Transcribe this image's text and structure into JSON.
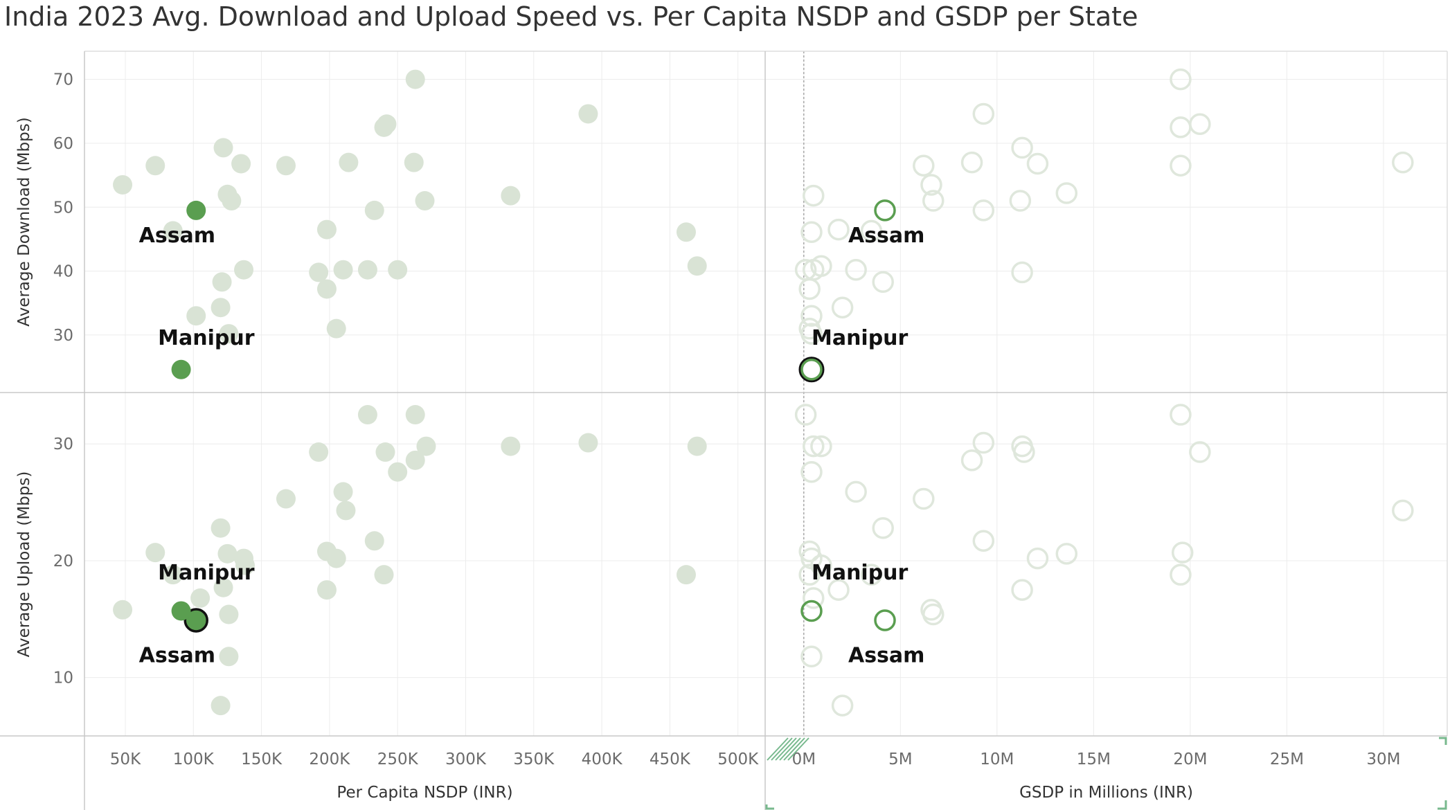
{
  "title": "India 2023 Avg. Download and Upload Speed vs. Per Capita NSDP and GSDP per State",
  "colors": {
    "muted": "#d9e3d5",
    "muted_ring": "#dfe7dc",
    "highlight": "#5a9e50",
    "selected_stroke": "#111111",
    "grid": "#ececec",
    "divider": "#c8c8c8"
  },
  "chart_data": {
    "type": "scatter",
    "layout": "2x2 faceted scatter",
    "x_axes": [
      {
        "label": "Per Capita NSDP (INR)",
        "ticks": [
          "50K",
          "100K",
          "150K",
          "200K",
          "250K",
          "300K",
          "350K",
          "400K",
          "450K",
          "500K"
        ],
        "tick_values": [
          50,
          100,
          150,
          200,
          250,
          300,
          350,
          400,
          450,
          500
        ],
        "range": [
          20,
          520
        ]
      },
      {
        "label": "GSDP in Millions (INR)",
        "ticks": [
          "0M",
          "5M",
          "10M",
          "15M",
          "20M",
          "25M",
          "30M"
        ],
        "tick_values": [
          0,
          5,
          10,
          15,
          20,
          25,
          30
        ],
        "range": [
          -2,
          33.3
        ]
      }
    ],
    "y_axes": [
      {
        "label": "Average Download (Mbps)",
        "ticks": [
          "30",
          "40",
          "50",
          "60",
          "70"
        ],
        "tick_values": [
          30,
          40,
          50,
          60,
          70
        ],
        "range": [
          21,
          74.4
        ]
      },
      {
        "label": "Average Upload (Mbps)",
        "ticks": [
          "10",
          "20",
          "30"
        ],
        "tick_values": [
          10,
          20,
          30
        ],
        "range": [
          5,
          34.4
        ]
      }
    ],
    "download_vs_nsdp": [
      [
        48,
        53.5
      ],
      [
        72,
        56.5
      ],
      [
        85,
        46.3
      ],
      [
        122,
        59.3
      ],
      [
        125,
        52
      ],
      [
        128,
        51
      ],
      [
        135,
        56.8
      ],
      [
        137,
        40.2
      ],
      [
        121,
        38.3
      ],
      [
        120,
        34.3
      ],
      [
        102,
        33
      ],
      [
        126,
        30.2
      ],
      [
        168,
        56.5
      ],
      [
        198,
        46.5
      ],
      [
        214,
        57
      ],
      [
        192,
        39.8
      ],
      [
        210,
        40.2
      ],
      [
        228,
        40.2
      ],
      [
        233,
        49.5
      ],
      [
        240,
        62.5
      ],
      [
        242,
        63
      ],
      [
        263,
        70
      ],
      [
        262,
        57
      ],
      [
        270,
        51
      ],
      [
        250,
        40.2
      ],
      [
        198,
        37.2
      ],
      [
        205,
        31
      ],
      [
        333,
        51.8
      ],
      [
        390,
        64.6
      ],
      [
        462,
        46.1
      ],
      [
        470,
        40.8
      ]
    ],
    "download_vs_gsdp": [
      [
        19.5,
        70
      ],
      [
        9.3,
        64.6
      ],
      [
        20.5,
        63
      ],
      [
        19.5,
        62.5
      ],
      [
        11.3,
        59.3
      ],
      [
        19.5,
        56.5
      ],
      [
        31,
        57
      ],
      [
        12.1,
        56.8
      ],
      [
        8.7,
        57
      ],
      [
        6.2,
        56.5
      ],
      [
        6.6,
        53.5
      ],
      [
        13.6,
        52.2
      ],
      [
        6.7,
        51
      ],
      [
        11.2,
        51
      ],
      [
        9.3,
        49.5
      ],
      [
        0.5,
        51.8
      ],
      [
        0.4,
        46.1
      ],
      [
        1.8,
        46.5
      ],
      [
        3.5,
        46.3
      ],
      [
        0.1,
        40.2
      ],
      [
        0.5,
        40.2
      ],
      [
        0.9,
        40.8
      ],
      [
        2.7,
        40.2
      ],
      [
        4.1,
        38.3
      ],
      [
        11.3,
        39.8
      ],
      [
        0.3,
        37.2
      ],
      [
        2,
        34.3
      ],
      [
        0.4,
        33
      ],
      [
        0.3,
        31
      ],
      [
        0.4,
        30.2
      ]
    ],
    "upload_vs_nsdp": [
      [
        228,
        32.5
      ],
      [
        263,
        32.5
      ],
      [
        390,
        30.1
      ],
      [
        333,
        29.8
      ],
      [
        470,
        29.8
      ],
      [
        192,
        29.3
      ],
      [
        241,
        29.3
      ],
      [
        271,
        29.8
      ],
      [
        263,
        28.6
      ],
      [
        250,
        27.6
      ],
      [
        210,
        25.9
      ],
      [
        212,
        24.3
      ],
      [
        168,
        25.3
      ],
      [
        120,
        22.8
      ],
      [
        72,
        20.7
      ],
      [
        85,
        18.8
      ],
      [
        125,
        20.6
      ],
      [
        137,
        20.2
      ],
      [
        198,
        20.8
      ],
      [
        205,
        20.2
      ],
      [
        138,
        19.6
      ],
      [
        233,
        21.7
      ],
      [
        240,
        18.8
      ],
      [
        198,
        17.5
      ],
      [
        122,
        17.7
      ],
      [
        48,
        15.8
      ],
      [
        126,
        15.4
      ],
      [
        105,
        16.8
      ],
      [
        126,
        11.8
      ],
      [
        120,
        7.6
      ],
      [
        462,
        18.8
      ]
    ],
    "upload_vs_gsdp": [
      [
        0.1,
        32.5
      ],
      [
        19.5,
        32.5
      ],
      [
        9.3,
        30.1
      ],
      [
        11.3,
        29.8
      ],
      [
        0.5,
        29.8
      ],
      [
        0.9,
        29.8
      ],
      [
        11.4,
        29.3
      ],
      [
        20.5,
        29.3
      ],
      [
        8.7,
        28.6
      ],
      [
        0.4,
        27.6
      ],
      [
        2.7,
        25.9
      ],
      [
        6.2,
        25.3
      ],
      [
        31,
        24.3
      ],
      [
        4.1,
        22.8
      ],
      [
        9.3,
        21.7
      ],
      [
        19.6,
        20.7
      ],
      [
        0.3,
        20.8
      ],
      [
        0.4,
        20.2
      ],
      [
        0.9,
        19.6
      ],
      [
        12.1,
        20.2
      ],
      [
        13.6,
        20.6
      ],
      [
        0.3,
        18.8
      ],
      [
        3.5,
        18.8
      ],
      [
        19.5,
        18.8
      ],
      [
        1.8,
        17.5
      ],
      [
        0.5,
        16.8
      ],
      [
        11.3,
        17.5
      ],
      [
        6.6,
        15.8
      ],
      [
        6.7,
        15.4
      ],
      [
        0.4,
        11.8
      ],
      [
        2,
        7.6
      ]
    ],
    "highlighted": [
      {
        "name": "Assam",
        "nsdp": 102,
        "gsdp": 4.2,
        "download": 49.5,
        "upload": 14.9,
        "selected_panel": "upload_vs_nsdp"
      },
      {
        "name": "Manipur",
        "nsdp": 91,
        "gsdp": 0.4,
        "download": 24.6,
        "upload": 15.7,
        "selected_panel": "download_vs_gsdp"
      }
    ],
    "labels": [
      {
        "text": "Assam",
        "panel": "download_vs_nsdp",
        "x": 60,
        "y": 44.5
      },
      {
        "text": "Manipur",
        "panel": "download_vs_nsdp",
        "x": 74,
        "y": 28.5
      },
      {
        "text": "Assam",
        "panel": "download_vs_gsdp",
        "x": 2.3,
        "y": 44.5
      },
      {
        "text": "Manipur",
        "panel": "download_vs_gsdp",
        "x": 0.4,
        "y": 28.5
      },
      {
        "text": "Manipur",
        "panel": "upload_vs_nsdp",
        "x": 74,
        "y": 18.4
      },
      {
        "text": "Assam",
        "panel": "upload_vs_nsdp",
        "x": 60,
        "y": 11.3
      },
      {
        "text": "Manipur",
        "panel": "upload_vs_gsdp",
        "x": 0.4,
        "y": 18.4
      },
      {
        "text": "Assam",
        "panel": "upload_vs_gsdp",
        "x": 2.3,
        "y": 11.3
      }
    ],
    "grid": true,
    "legend": "none"
  }
}
